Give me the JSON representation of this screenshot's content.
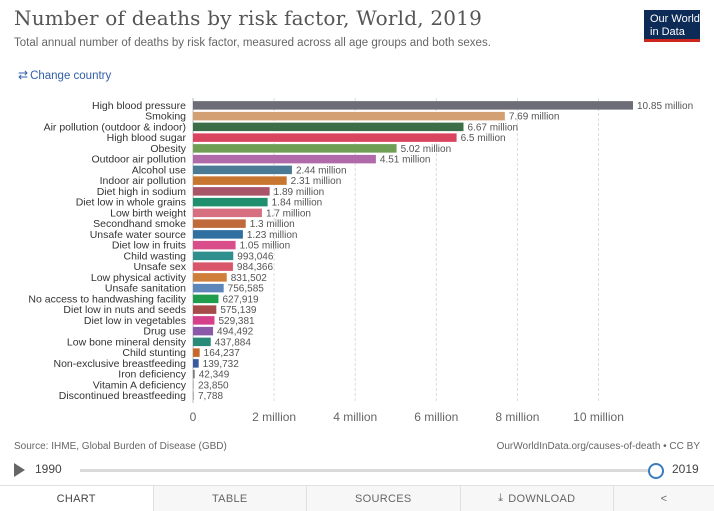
{
  "header": {
    "title": "Number of deaths by risk factor, World, 2019",
    "subtitle": "Total annual number of deaths by risk factor, measured across all age groups and both sexes.",
    "logo_line1": "Our World",
    "logo_line2": "in Data",
    "change_country": "Change country",
    "change_country_icon": "swap-arrows-icon"
  },
  "chart_data": {
    "type": "bar",
    "orientation": "horizontal",
    "categories": [
      "High blood pressure",
      "Smoking",
      "Air pollution (outdoor & indoor)",
      "High blood sugar",
      "Obesity",
      "Outdoor air pollution",
      "Alcohol use",
      "Indoor air pollution",
      "Diet high in sodium",
      "Diet low in whole grains",
      "Low birth weight",
      "Secondhand smoke",
      "Unsafe water source",
      "Diet low in fruits",
      "Child wasting",
      "Unsafe sex",
      "Low physical activity",
      "Unsafe sanitation",
      "No access to handwashing facility",
      "Diet low in nuts and seeds",
      "Diet low in vegetables",
      "Drug use",
      "Low bone mineral density",
      "Child stunting",
      "Non-exclusive breastfeeding",
      "Iron deficiency",
      "Vitamin A deficiency",
      "Discontinued breastfeeding"
    ],
    "values": [
      10850000,
      7690000,
      6670000,
      6500000,
      5020000,
      4510000,
      2440000,
      2310000,
      1890000,
      1840000,
      1700000,
      1300000,
      1230000,
      1050000,
      993046,
      984366,
      831502,
      756585,
      627919,
      575139,
      529381,
      494492,
      437884,
      164237,
      139732,
      42349,
      23850,
      7788
    ],
    "value_labels": [
      "10.85 million",
      "7.69 million",
      "6.67 million",
      "6.5 million",
      "5.02 million",
      "4.51 million",
      "2.44 million",
      "2.31 million",
      "1.89 million",
      "1.84 million",
      "1.7 million",
      "1.3 million",
      "1.23 million",
      "1.05 million",
      "993,046",
      "984,366",
      "831,502",
      "756,585",
      "627,919",
      "575,139",
      "529,381",
      "494,492",
      "437,884",
      "164,237",
      "139,732",
      "42,349",
      "23,850",
      "7,788"
    ],
    "colors": [
      "#6d6d77",
      "#d3a074",
      "#3b6e46",
      "#d9455e",
      "#6f9e55",
      "#b16aa9",
      "#4b7a94",
      "#c8752f",
      "#a8556a",
      "#1f8f6e",
      "#d66f80",
      "#c0693a",
      "#3070a0",
      "#d94d8a",
      "#2f8f8f",
      "#d9566a",
      "#cf7f3a",
      "#5d86ba",
      "#1f9d4d",
      "#a64a4a",
      "#d63f8a",
      "#8a5aa8",
      "#2a8a7a",
      "#c8672a",
      "#3a5aa0",
      "#7a7a7a",
      "#bfbfbf",
      "#b0b0b0"
    ],
    "xticks": [
      0,
      2000000,
      4000000,
      6000000,
      8000000,
      10000000
    ],
    "xtick_labels": [
      "0",
      "2 million",
      "4 million",
      "6 million",
      "8 million",
      "10 million"
    ],
    "xlim": [
      0,
      10850000
    ],
    "xlabel": "",
    "ylabel": "",
    "grid": "vertical dashed"
  },
  "footer": {
    "source": "Source: IHME, Global Burden of Disease (GBD)",
    "url": "OurWorldInData.org/causes-of-death • CC BY"
  },
  "timeline": {
    "start_label": "1990",
    "end_label": "2019",
    "start_year": 1990,
    "end_year": 2019,
    "selected_year": 2019,
    "play_icon": "play-icon"
  },
  "tabs": {
    "chart": "CHART",
    "table": "TABLE",
    "sources": "SOURCES",
    "download": "DOWNLOAD",
    "download_icon": "download-icon",
    "share_icon": "share-icon"
  }
}
